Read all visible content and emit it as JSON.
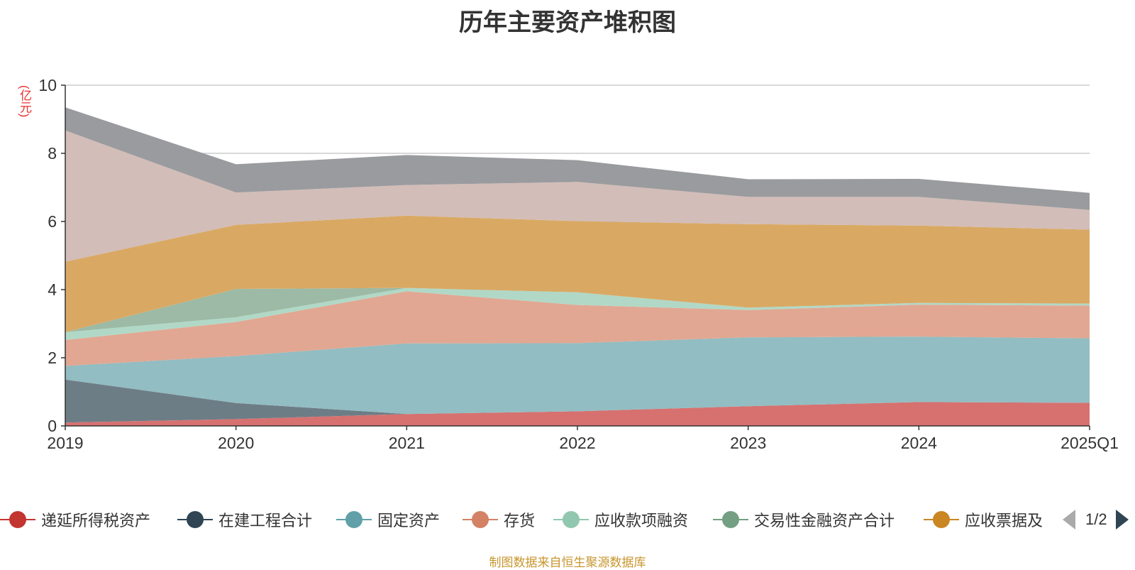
{
  "title": "历年主要资产堆积图",
  "unit_label": "(亿元)",
  "footer": "制图数据来自恒生聚源数据库",
  "legend_pager": {
    "text": "1/2"
  },
  "chart_data": {
    "type": "area",
    "stacked": true,
    "categories": [
      "2019",
      "2020",
      "2021",
      "2022",
      "2023",
      "2024",
      "2025Q1"
    ],
    "ylim": [
      0,
      10
    ],
    "yticks": [
      0,
      2,
      4,
      6,
      8,
      10
    ],
    "grid": true,
    "series": [
      {
        "name": "递延所得税资产",
        "color": "#c23531",
        "fill": "#d67170",
        "legend": true,
        "values": [
          0.1,
          0.2,
          0.35,
          0.43,
          0.58,
          0.7,
          0.68
        ]
      },
      {
        "name": "在建工程合计",
        "color": "#2f4554",
        "fill": "#6d7d86",
        "legend": true,
        "values": [
          1.26,
          0.47,
          0.0,
          0.0,
          0.0,
          0.0,
          0.0
        ]
      },
      {
        "name": "固定资产",
        "color": "#61a0a8",
        "fill": "#92bdc2",
        "legend": true,
        "values": [
          0.4,
          1.38,
          2.07,
          2.0,
          2.02,
          1.92,
          1.89
        ]
      },
      {
        "name": "存货",
        "color": "#d48265",
        "fill": "#e1a792",
        "legend": true,
        "values": [
          0.76,
          1.0,
          1.53,
          1.12,
          0.8,
          0.94,
          0.96
        ]
      },
      {
        "name": "应收款项融资",
        "color": "#91c7ae",
        "fill": "#b1d8c6",
        "legend": true,
        "values": [
          0.23,
          0.14,
          0.1,
          0.37,
          0.07,
          0.05,
          0.06
        ]
      },
      {
        "name": "交易性金融资产合计",
        "color": "#749f83",
        "fill": "#9cbaa5",
        "legend": true,
        "values": [
          0.0,
          0.83,
          0.0,
          0.0,
          0.0,
          0.0,
          0.0
        ]
      },
      {
        "name": "应收票据及",
        "color": "#ca8622",
        "fill": "#d9a964",
        "legend": true,
        "values": [
          2.07,
          1.88,
          2.12,
          2.09,
          2.45,
          2.27,
          2.17
        ]
      },
      {
        "color": "#bda29a",
        "fill": "#d2bdb8",
        "legend": false,
        "values": [
          3.85,
          0.95,
          0.9,
          1.15,
          0.8,
          0.84,
          0.58
        ]
      },
      {
        "color": "#6e7074",
        "fill": "#9a9b9e",
        "legend": false,
        "values": [
          0.68,
          0.83,
          0.88,
          0.64,
          0.52,
          0.53,
          0.5
        ]
      }
    ]
  }
}
